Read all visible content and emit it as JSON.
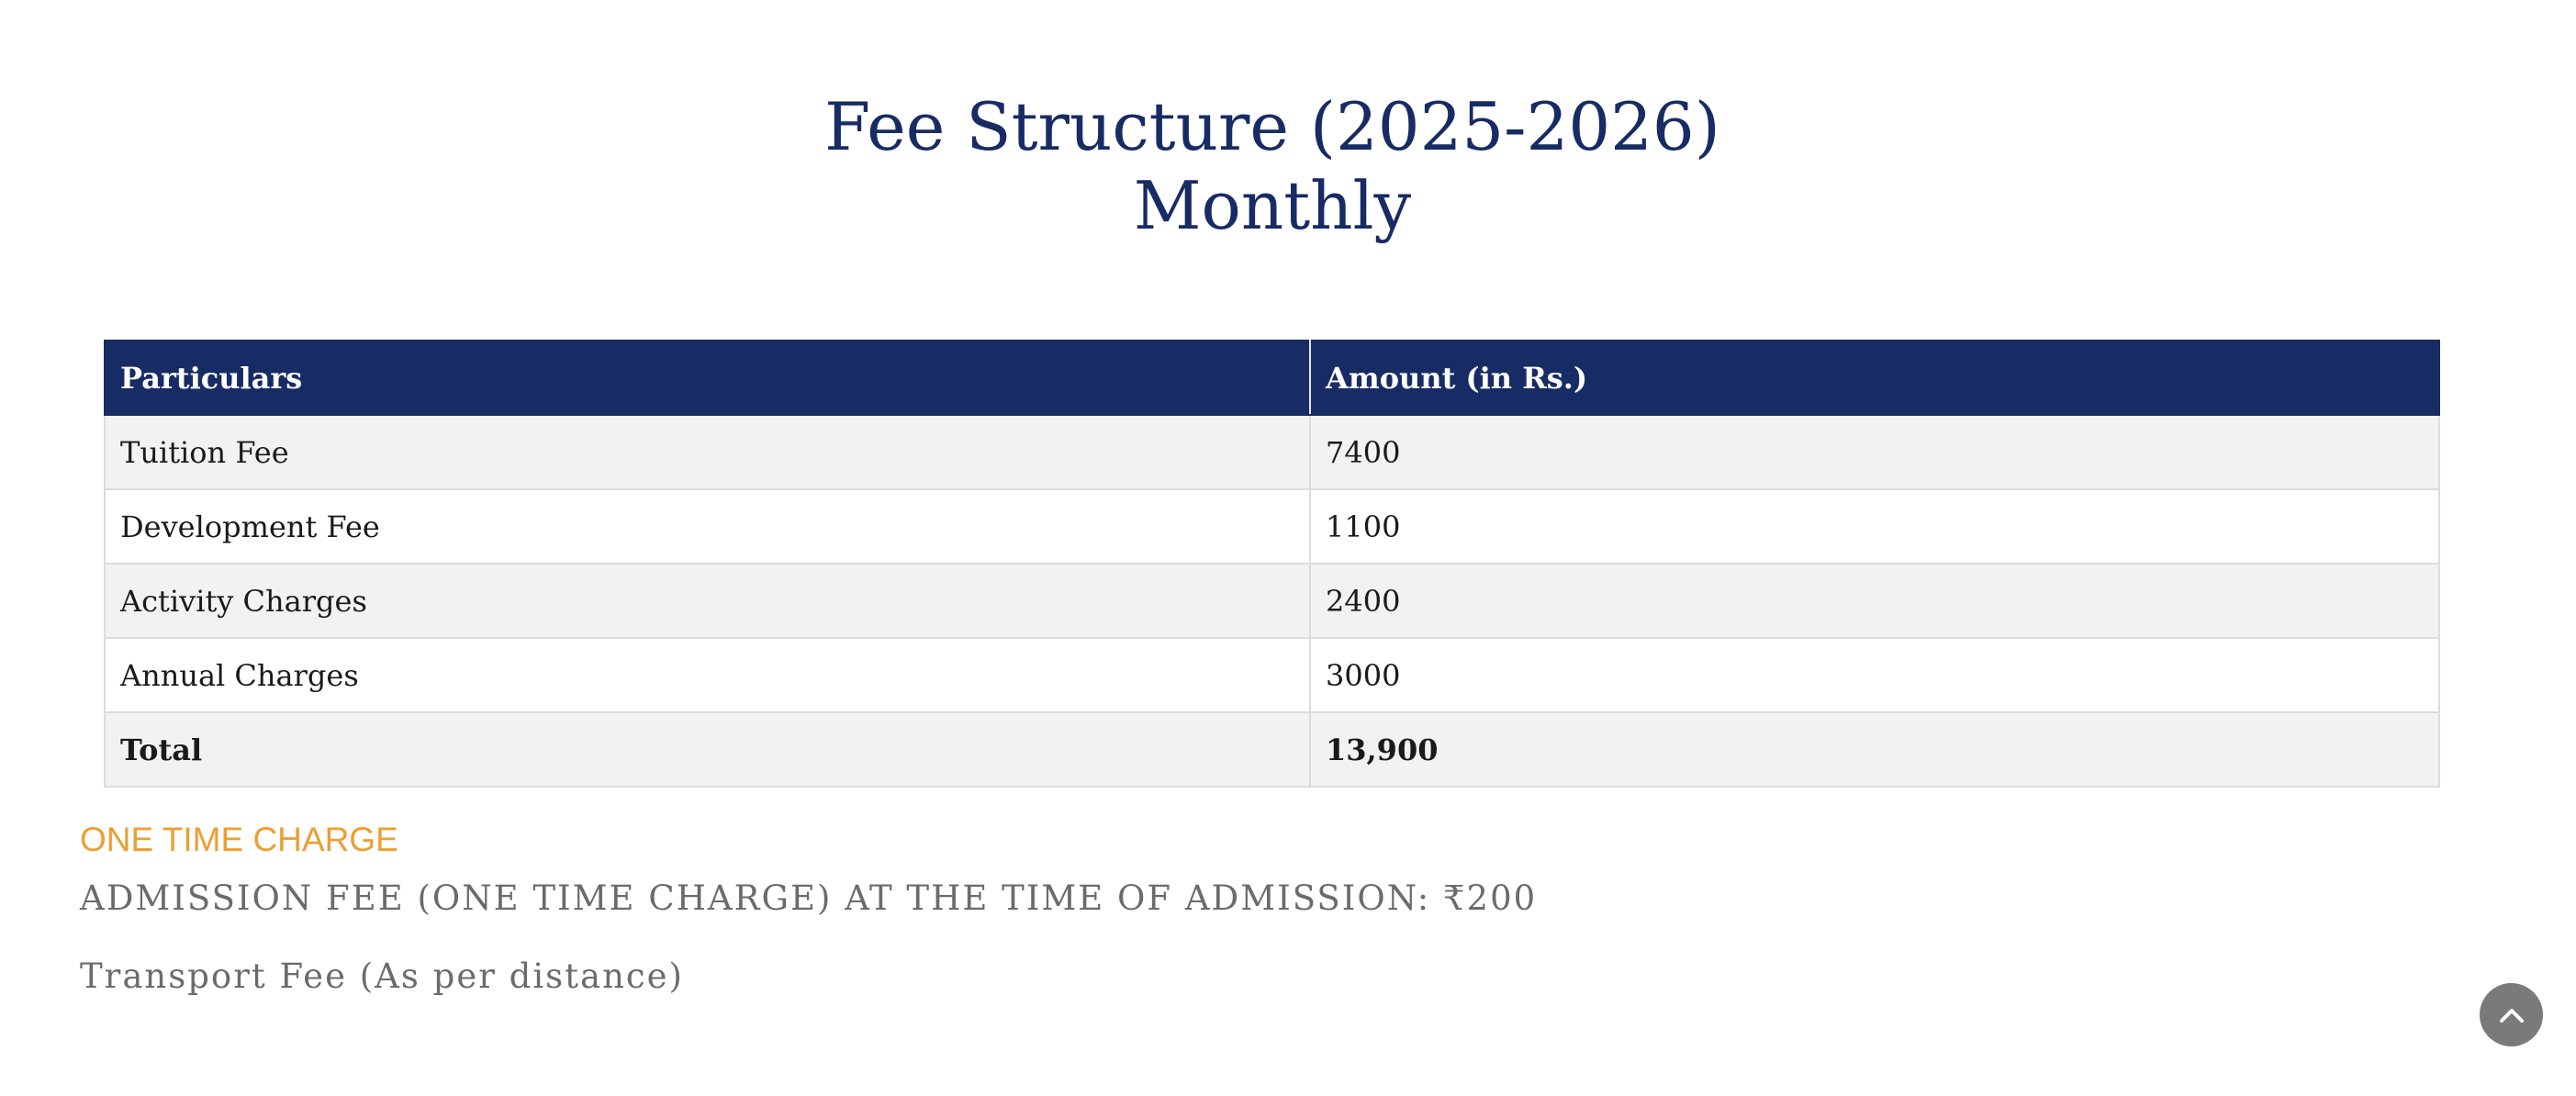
{
  "title": {
    "line1": "Fee Structure (2025-2026)",
    "line2": "Monthly"
  },
  "table": {
    "headers": [
      "Particulars",
      "Amount (in Rs.)"
    ],
    "rows": [
      {
        "particular": "Tuition Fee",
        "amount": "7400"
      },
      {
        "particular": "Development Fee",
        "amount": "1100"
      },
      {
        "particular": "Activity Charges",
        "amount": "2400"
      },
      {
        "particular": "Annual Charges",
        "amount": "3000"
      }
    ],
    "total": {
      "particular": "Total",
      "amount": "13,900"
    }
  },
  "one_time": {
    "heading": "ONE TIME CHARGE",
    "admission": "ADMISSION FEE (ONE TIME CHARGE) AT THE TIME OF ADMISSION: ₹200"
  },
  "transport": "Transport Fee (As per distance)",
  "scroll_top": {
    "icon": "chevron-up-icon"
  },
  "colors": {
    "primary": "#172b64",
    "accent": "#ec9f32",
    "muted_text": "#6b6b6b",
    "row_alt": "#f2f2f2",
    "scroll_button": "#7a7a7a"
  }
}
